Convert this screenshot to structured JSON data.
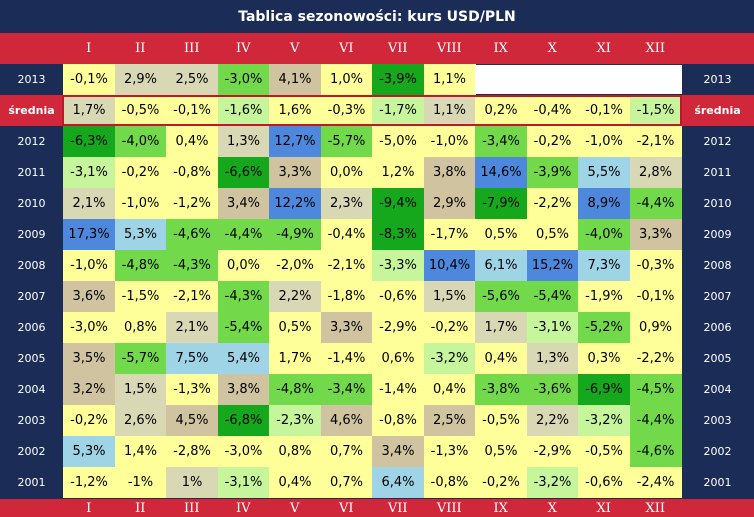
{
  "title": "Tablica sezonowości: kurs USD/PLN",
  "months": [
    "I",
    "II",
    "III",
    "IV",
    "V",
    "VI",
    "VII",
    "VIII",
    "IX",
    "X",
    "XI",
    "XII"
  ],
  "colors": {
    "background": "#1b2d57",
    "header": "#d0283a",
    "neutral": "#ffff99",
    "beige": "#d9d8b5",
    "taupe": "#cfc3a0",
    "light_green": "#c6f59c",
    "green": "#72d94a",
    "dark_green": "#15a81c",
    "light_blue": "#9fd4e6",
    "blue": "#4d88dc"
  },
  "chart_data": {
    "type": "table",
    "title": "Tablica sezonowości: kurs USD/PLN",
    "columns": [
      "I",
      "II",
      "III",
      "IV",
      "V",
      "VI",
      "VII",
      "VIII",
      "IX",
      "X",
      "XI",
      "XII"
    ],
    "rows": [
      {
        "label": "2013",
        "values": [
          "-0,1%",
          "2,9%",
          "2,5%",
          "-3,0%",
          "4,1%",
          "1,0%",
          "-3,9%",
          "1,1%",
          "",
          "",
          "",
          ""
        ],
        "shade": [
          "neutral",
          "beige",
          "beige",
          "green",
          "taupe",
          "neutral",
          "dark_green",
          "neutral",
          "blank",
          "blank",
          "blank",
          "blank"
        ]
      },
      {
        "label": "średnia",
        "values": [
          "1,7%",
          "-0,5%",
          "-0,1%",
          "-1,6%",
          "1,6%",
          "-0,3%",
          "-1,7%",
          "1,1%",
          "0,2%",
          "-0,4%",
          "-0,1%",
          "-1,5%"
        ],
        "shade": [
          "beige",
          "neutral",
          "neutral",
          "light_green",
          "neutral",
          "neutral",
          "light_green",
          "beige",
          "neutral",
          "neutral",
          "neutral",
          "light_green"
        ],
        "average": true
      },
      {
        "label": "2012",
        "values": [
          "-6,3%",
          "-4,0%",
          "0,4%",
          "1,3%",
          "12,7%",
          "-5,7%",
          "-5,0%",
          "-1,0%",
          "-3,4%",
          "-0,2%",
          "-1,0%",
          "-2,1%"
        ],
        "shade": [
          "dark_green",
          "green",
          "neutral",
          "beige",
          "blue",
          "green",
          "neutral",
          "neutral",
          "green",
          "neutral",
          "neutral",
          "neutral"
        ]
      },
      {
        "label": "2011",
        "values": [
          "-3,1%",
          "-0,2%",
          "-0,8%",
          "-6,6%",
          "3,3%",
          "0,0%",
          "1,2%",
          "3,8%",
          "14,6%",
          "-3,9%",
          "5,5%",
          "2,8%"
        ],
        "shade": [
          "light_green",
          "neutral",
          "neutral",
          "dark_green",
          "taupe",
          "neutral",
          "neutral",
          "taupe",
          "blue",
          "green",
          "light_blue",
          "beige"
        ]
      },
      {
        "label": "2010",
        "values": [
          "2,1%",
          "-1,0%",
          "-1,2%",
          "3,4%",
          "12,2%",
          "2,3%",
          "-9,4%",
          "2,9%",
          "-7,9%",
          "-2,2%",
          "8,9%",
          "-4,4%"
        ],
        "shade": [
          "beige",
          "neutral",
          "neutral",
          "taupe",
          "blue",
          "beige",
          "dark_green",
          "taupe",
          "dark_green",
          "neutral",
          "blue",
          "green"
        ]
      },
      {
        "label": "2009",
        "values": [
          "17,3%",
          "5,3%",
          "-4,6%",
          "-4,4%",
          "-4,9%",
          "-0,4%",
          "-8,3%",
          "-1,7%",
          "0,5%",
          "0,5%",
          "-4,0%",
          "3,3%"
        ],
        "shade": [
          "blue",
          "light_blue",
          "green",
          "green",
          "green",
          "neutral",
          "dark_green",
          "neutral",
          "neutral",
          "neutral",
          "green",
          "taupe"
        ]
      },
      {
        "label": "2008",
        "values": [
          "-1,0%",
          "-4,8%",
          "-4,3%",
          "0,0%",
          "-2,0%",
          "-2,1%",
          "-3,3%",
          "10,4%",
          "6,1%",
          "15,2%",
          "7,3%",
          "-0,3%"
        ],
        "shade": [
          "neutral",
          "green",
          "green",
          "neutral",
          "neutral",
          "neutral",
          "light_green",
          "blue",
          "light_blue",
          "blue",
          "light_blue",
          "neutral"
        ]
      },
      {
        "label": "2007",
        "values": [
          "3,6%",
          "-1,5%",
          "-2,1%",
          "-4,3%",
          "2,2%",
          "-1,8%",
          "-0,6%",
          "1,5%",
          "-5,6%",
          "-5,4%",
          "-1,9%",
          "-0,1%"
        ],
        "shade": [
          "taupe",
          "neutral",
          "neutral",
          "green",
          "beige",
          "neutral",
          "neutral",
          "beige",
          "green",
          "green",
          "neutral",
          "neutral"
        ]
      },
      {
        "label": "2006",
        "values": [
          "-3,0%",
          "0,8%",
          "2,1%",
          "-5,4%",
          "0,5%",
          "3,3%",
          "-2,9%",
          "-0,2%",
          "1,7%",
          "-3,1%",
          "-5,2%",
          "0,9%"
        ],
        "shade": [
          "neutral",
          "neutral",
          "beige",
          "green",
          "neutral",
          "taupe",
          "neutral",
          "neutral",
          "beige",
          "light_green",
          "green",
          "neutral"
        ]
      },
      {
        "label": "2005",
        "values": [
          "3,5%",
          "-5,7%",
          "7,5%",
          "5,4%",
          "1,7%",
          "-1,4%",
          "0,6%",
          "-3,2%",
          "0,4%",
          "1,3%",
          "0,3%",
          "-2,2%"
        ],
        "shade": [
          "taupe",
          "green",
          "light_blue",
          "light_blue",
          "neutral",
          "neutral",
          "neutral",
          "light_green",
          "neutral",
          "beige",
          "neutral",
          "neutral"
        ]
      },
      {
        "label": "2004",
        "values": [
          "3,2%",
          "1,5%",
          "-1,3%",
          "3,8%",
          "-4,8%",
          "-3,4%",
          "-1,4%",
          "0,4%",
          "-3,8%",
          "-3,6%",
          "-6,9%",
          "-4,5%"
        ],
        "shade": [
          "taupe",
          "beige",
          "neutral",
          "taupe",
          "green",
          "green",
          "neutral",
          "neutral",
          "green",
          "green",
          "dark_green",
          "green"
        ]
      },
      {
        "label": "2003",
        "values": [
          "-0,2%",
          "2,6%",
          "4,5%",
          "-6,8%",
          "-2,3%",
          "4,6%",
          "-0,8%",
          "2,5%",
          "-0,5%",
          "2,2%",
          "-3,2%",
          "-4,4%"
        ],
        "shade": [
          "neutral",
          "beige",
          "taupe",
          "dark_green",
          "light_green",
          "taupe",
          "neutral",
          "taupe",
          "neutral",
          "beige",
          "light_green",
          "green"
        ]
      },
      {
        "label": "2002",
        "values": [
          "5,3%",
          "1,4%",
          "-2,8%",
          "-3,0%",
          "0,8%",
          "0,7%",
          "3,4%",
          "-1,3%",
          "0,5%",
          "-2,9%",
          "-0,5%",
          "-4,6%"
        ],
        "shade": [
          "light_blue",
          "neutral",
          "neutral",
          "neutral",
          "neutral",
          "neutral",
          "taupe",
          "neutral",
          "neutral",
          "neutral",
          "neutral",
          "green"
        ]
      },
      {
        "label": "2001",
        "values": [
          "-1,2%",
          "-1%",
          "1%",
          "-3,1%",
          "0,4%",
          "0,7%",
          "6,4%",
          "-0,8%",
          "-0,2%",
          "-3,2%",
          "-0,6%",
          "-2,4%"
        ],
        "shade": [
          "neutral",
          "neutral",
          "beige",
          "light_green",
          "neutral",
          "neutral",
          "light_blue",
          "neutral",
          "neutral",
          "light_green",
          "neutral",
          "neutral"
        ]
      }
    ]
  }
}
